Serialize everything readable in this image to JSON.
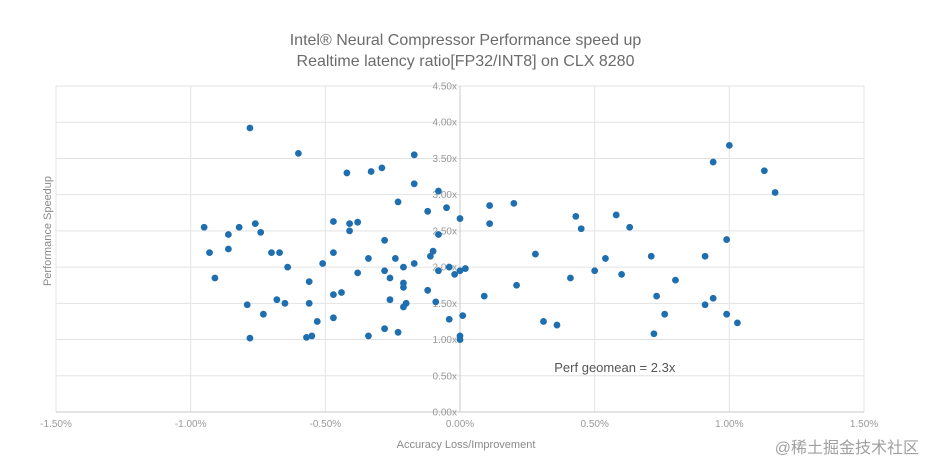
{
  "chart_data": {
    "type": "scatter",
    "title": "Intel® Neural Compressor Performance speed up",
    "subtitle": "Realtime latency ratio[FP32/INT8] on CLX 8280",
    "xlabel": "Accuracy Loss/Improvement",
    "ylabel": "Performance Speedup",
    "xlim": [
      -1.5,
      1.5
    ],
    "ylim": [
      0,
      4.5
    ],
    "x_ticks": [
      "-1.50%",
      "-1.00%",
      "-0.50%",
      "0.00%",
      "0.50%",
      "1.00%",
      "1.50%"
    ],
    "y_ticks": [
      "0.00x",
      "0.50x",
      "1.00x",
      "1.50x",
      "2.00x",
      "2.50x",
      "3.00x",
      "3.50x",
      "4.00x",
      "4.50x"
    ],
    "grid": true,
    "annotation": "Perf geomean = 2.3x",
    "series": [
      {
        "name": "Models",
        "color": "#1f6fb0",
        "points": [
          [
            -0.78,
            3.92
          ],
          [
            -0.6,
            3.57
          ],
          [
            -0.42,
            3.3
          ],
          [
            -0.33,
            3.32
          ],
          [
            -0.29,
            3.37
          ],
          [
            -0.17,
            3.55
          ],
          [
            -0.17,
            3.15
          ],
          [
            -0.08,
            3.05
          ],
          [
            -0.23,
            2.9
          ],
          [
            -0.12,
            2.77
          ],
          [
            -0.05,
            2.82
          ],
          [
            0.0,
            2.67
          ],
          [
            0.11,
            2.85
          ],
          [
            0.2,
            2.88
          ],
          [
            0.11,
            2.6
          ],
          [
            -0.95,
            2.55
          ],
          [
            -0.93,
            2.2
          ],
          [
            -0.91,
            1.85
          ],
          [
            -0.86,
            2.45
          ],
          [
            -0.86,
            2.25
          ],
          [
            -0.82,
            2.55
          ],
          [
            -0.76,
            2.6
          ],
          [
            -0.74,
            2.48
          ],
          [
            -0.7,
            2.2
          ],
          [
            -0.67,
            2.2
          ],
          [
            -0.64,
            2.0
          ],
          [
            -0.51,
            2.05
          ],
          [
            -0.47,
            2.63
          ],
          [
            -0.47,
            2.2
          ],
          [
            -0.41,
            2.6
          ],
          [
            -0.41,
            2.5
          ],
          [
            -0.38,
            2.62
          ],
          [
            -0.38,
            1.92
          ],
          [
            -0.34,
            2.12
          ],
          [
            -0.28,
            2.37
          ],
          [
            -0.26,
            1.85
          ],
          [
            -0.28,
            1.95
          ],
          [
            -0.24,
            2.12
          ],
          [
            -0.21,
            2.0
          ],
          [
            -0.21,
            1.78
          ],
          [
            -0.21,
            1.72
          ],
          [
            -0.17,
            2.05
          ],
          [
            -0.11,
            2.15
          ],
          [
            -0.1,
            2.22
          ],
          [
            -0.08,
            2.45
          ],
          [
            -0.08,
            1.95
          ],
          [
            -0.04,
            2.0
          ],
          [
            -0.02,
            1.9
          ],
          [
            0.0,
            1.95
          ],
          [
            0.02,
            1.98
          ],
          [
            -0.12,
            1.68
          ],
          [
            -0.09,
            1.52
          ],
          [
            -0.04,
            1.28
          ],
          [
            0.01,
            1.33
          ],
          [
            0.0,
            1.05
          ],
          [
            0.0,
            1.0
          ],
          [
            -0.79,
            1.48
          ],
          [
            -0.78,
            1.02
          ],
          [
            -0.73,
            1.35
          ],
          [
            -0.68,
            1.55
          ],
          [
            -0.65,
            1.5
          ],
          [
            -0.56,
            1.8
          ],
          [
            -0.56,
            1.5
          ],
          [
            -0.53,
            1.25
          ],
          [
            -0.57,
            1.03
          ],
          [
            -0.55,
            1.05
          ],
          [
            -0.47,
            1.62
          ],
          [
            -0.47,
            1.3
          ],
          [
            -0.44,
            1.65
          ],
          [
            -0.34,
            1.05
          ],
          [
            -0.28,
            1.15
          ],
          [
            -0.26,
            1.55
          ],
          [
            -0.23,
            1.1
          ],
          [
            -0.21,
            1.45
          ],
          [
            -0.2,
            1.5
          ],
          [
            0.09,
            1.6
          ],
          [
            0.21,
            1.75
          ],
          [
            0.28,
            2.18
          ],
          [
            0.31,
            1.25
          ],
          [
            0.36,
            1.2
          ],
          [
            0.41,
            1.85
          ],
          [
            0.43,
            2.7
          ],
          [
            0.45,
            2.53
          ],
          [
            0.5,
            1.95
          ],
          [
            0.54,
            2.12
          ],
          [
            0.58,
            2.72
          ],
          [
            0.6,
            1.9
          ],
          [
            0.63,
            2.55
          ],
          [
            0.71,
            2.15
          ],
          [
            0.73,
            1.6
          ],
          [
            0.72,
            1.08
          ],
          [
            0.76,
            1.35
          ],
          [
            0.8,
            1.82
          ],
          [
            0.91,
            2.15
          ],
          [
            0.91,
            1.48
          ],
          [
            0.94,
            1.57
          ],
          [
            0.94,
            3.45
          ],
          [
            0.99,
            1.35
          ],
          [
            0.99,
            2.38
          ],
          [
            1.0,
            3.68
          ],
          [
            1.03,
            1.23
          ],
          [
            1.13,
            3.33
          ],
          [
            1.17,
            3.03
          ]
        ]
      }
    ]
  },
  "watermark": "@稀土掘金技术社区"
}
